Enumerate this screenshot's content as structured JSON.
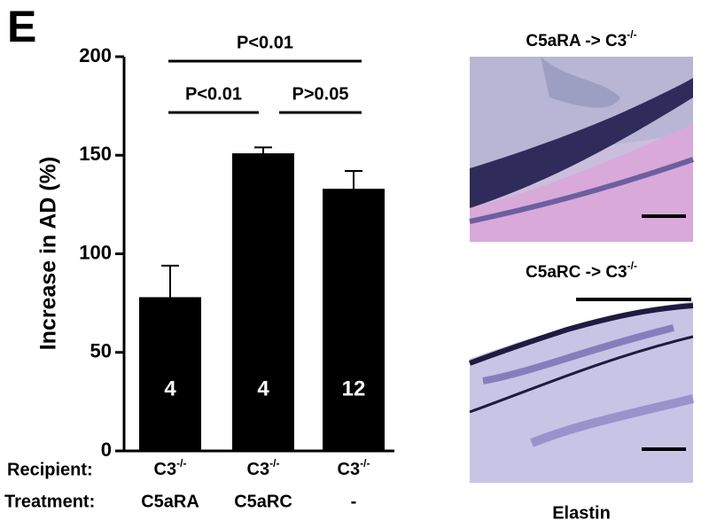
{
  "chart_data": {
    "type": "bar",
    "panel_label": "E",
    "y_label": "Increase in AD (%)",
    "categories": [
      "C5aRA",
      "C5aRC",
      "-"
    ],
    "category_label": "Treatment:",
    "recipient_label": "Recipient:",
    "recipients": [
      {
        "base": "C3",
        "sup": "-/-"
      },
      {
        "base": "C3",
        "sup": "-/-"
      },
      {
        "base": "C3",
        "sup": "-/-"
      }
    ],
    "values": [
      78,
      151,
      133
    ],
    "errors": [
      16,
      3,
      9
    ],
    "n_labels": [
      "4",
      "4",
      "12"
    ],
    "color": "#000000",
    "ylim": [
      0,
      200
    ],
    "yticks": [
      0,
      50,
      100,
      150,
      200
    ],
    "significance": [
      {
        "text": "P<0.01",
        "between": [
          0,
          1
        ]
      },
      {
        "text": "P>0.05",
        "between": [
          1,
          2
        ]
      },
      {
        "text": "P<0.01",
        "between": [
          0,
          2
        ]
      }
    ]
  },
  "images": [
    {
      "title": {
        "base": "C5aRA -> C3",
        "sup": "-/-"
      }
    },
    {
      "title": {
        "base": "C5aRC -> C3",
        "sup": "-/-"
      }
    }
  ],
  "caption": "Elastin"
}
